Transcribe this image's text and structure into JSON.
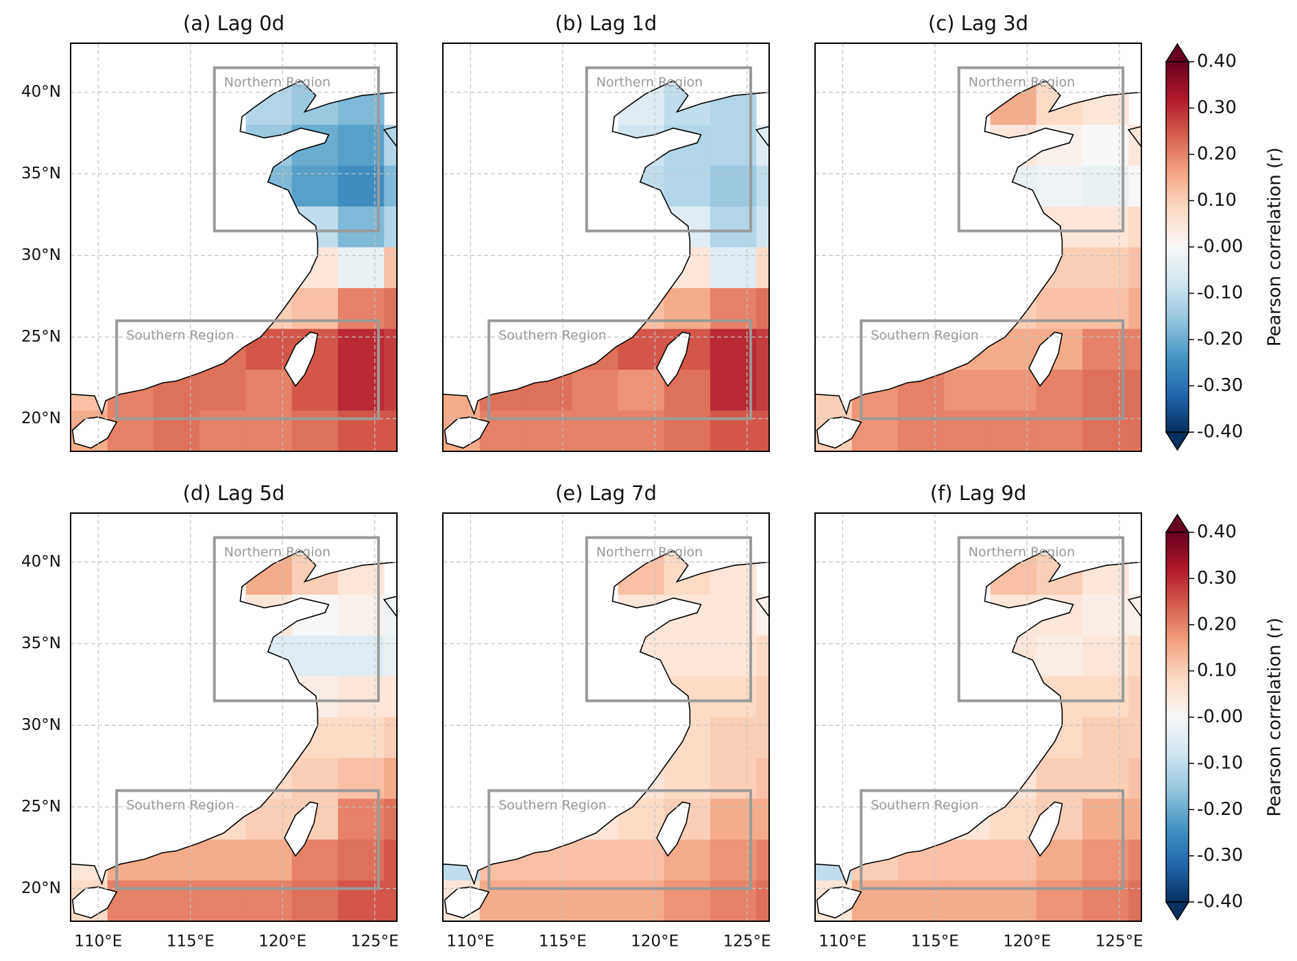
{
  "chart_data": [
    {
      "type": "heatmap",
      "title": "(a) Lag 0d",
      "xlim": [
        108.5,
        126.2
      ],
      "ylim": [
        18,
        43
      ],
      "xticks": [
        110,
        115,
        120,
        125
      ],
      "yticks": [
        {
          "value": 20,
          "label": "20°N"
        },
        {
          "value": 25,
          "label": "25°N"
        },
        {
          "value": 30,
          "label": "30°N"
        },
        {
          "value": 35,
          "label": "35°N"
        },
        {
          "value": 40,
          "label": "40°N"
        }
      ],
      "grid": true,
      "lon_edges": [
        108,
        110.5,
        113,
        115.5,
        118,
        120.5,
        123,
        125.5,
        128
      ],
      "lat_edges": [
        40.5,
        38,
        35.5,
        33,
        30.5,
        28,
        25.5,
        23,
        20.5,
        18
      ],
      "values": [
        [
          null,
          null,
          null,
          null,
          -0.12,
          -0.15,
          -0.18,
          null
        ],
        [
          null,
          null,
          null,
          null,
          -0.15,
          -0.2,
          -0.22,
          -0.12
        ],
        [
          null,
          null,
          null,
          null,
          -0.18,
          -0.22,
          -0.25,
          -0.18
        ],
        [
          null,
          null,
          null,
          null,
          null,
          -0.1,
          -0.18,
          -0.12
        ],
        [
          null,
          null,
          null,
          null,
          null,
          0.05,
          -0.03,
          0.12
        ],
        [
          null,
          null,
          null,
          null,
          0.1,
          0.12,
          0.2,
          0.22
        ],
        [
          null,
          null,
          null,
          0.22,
          0.25,
          0.25,
          0.3,
          0.28
        ],
        [
          0.12,
          0.2,
          0.22,
          0.22,
          0.2,
          0.25,
          0.3,
          0.28
        ],
        [
          0.15,
          0.2,
          0.22,
          0.2,
          0.2,
          0.22,
          0.25,
          0.25
        ]
      ],
      "regions": [
        {
          "name": "Northern Region",
          "lon": [
            116.3,
            125.2
          ],
          "lat": [
            31.5,
            41.5
          ]
        },
        {
          "name": "Southern Region",
          "lon": [
            111.0,
            125.2
          ],
          "lat": [
            20.0,
            26.0
          ]
        }
      ]
    },
    {
      "type": "heatmap",
      "title": "(b) Lag 1d",
      "xlim": [
        108.5,
        126.2
      ],
      "ylim": [
        18,
        43
      ],
      "xticks": [
        110,
        115,
        120,
        125
      ],
      "yticks": [
        20,
        25,
        30,
        35,
        40
      ],
      "grid": true,
      "lon_edges": [
        108,
        110.5,
        113,
        115.5,
        118,
        120.5,
        123,
        125.5,
        128
      ],
      "lat_edges": [
        40.5,
        38,
        35.5,
        33,
        30.5,
        28,
        25.5,
        23,
        20.5,
        18
      ],
      "values": [
        [
          null,
          null,
          null,
          null,
          -0.05,
          -0.1,
          -0.12,
          null
        ],
        [
          null,
          null,
          null,
          null,
          -0.08,
          -0.12,
          -0.12,
          -0.05
        ],
        [
          null,
          null,
          null,
          null,
          -0.1,
          -0.12,
          -0.15,
          -0.1
        ],
        [
          null,
          null,
          null,
          null,
          null,
          -0.05,
          -0.12,
          -0.08
        ],
        [
          null,
          null,
          null,
          null,
          null,
          0.05,
          -0.05,
          0.08
        ],
        [
          null,
          null,
          null,
          null,
          0.12,
          0.15,
          0.2,
          0.22
        ],
        [
          null,
          null,
          null,
          0.22,
          0.25,
          0.25,
          0.3,
          0.28
        ],
        [
          0.15,
          0.22,
          0.22,
          0.2,
          0.18,
          0.22,
          0.3,
          0.28
        ],
        [
          0.15,
          0.2,
          0.2,
          0.2,
          0.2,
          0.22,
          0.25,
          0.25
        ]
      ],
      "regions": [
        {
          "name": "Northern Region",
          "lon": [
            116.3,
            125.2
          ],
          "lat": [
            31.5,
            41.5
          ]
        },
        {
          "name": "Southern Region",
          "lon": [
            111.0,
            125.2
          ],
          "lat": [
            20.0,
            26.0
          ]
        }
      ]
    },
    {
      "type": "heatmap",
      "title": "(c) Lag 3d",
      "xlim": [
        108.5,
        126.2
      ],
      "ylim": [
        18,
        43
      ],
      "xticks": [
        110,
        115,
        120,
        125
      ],
      "yticks": [
        20,
        25,
        30,
        35,
        40
      ],
      "grid": true,
      "lon_edges": [
        108,
        110.5,
        113,
        115.5,
        118,
        120.5,
        123,
        125.5,
        128
      ],
      "lat_edges": [
        40.5,
        38,
        35.5,
        33,
        30.5,
        28,
        25.5,
        23,
        20.5,
        18
      ],
      "values": [
        [
          null,
          null,
          null,
          null,
          0.15,
          0.08,
          0.05,
          null
        ],
        [
          null,
          null,
          null,
          null,
          0.05,
          0.02,
          0.0,
          0.05
        ],
        [
          null,
          null,
          null,
          null,
          -0.03,
          -0.02,
          -0.03,
          0.0
        ],
        [
          null,
          null,
          null,
          null,
          null,
          0.05,
          0.05,
          0.08
        ],
        [
          null,
          null,
          null,
          null,
          null,
          0.1,
          0.1,
          0.12
        ],
        [
          null,
          null,
          null,
          null,
          0.1,
          0.12,
          0.12,
          0.15
        ],
        [
          null,
          null,
          null,
          0.15,
          0.15,
          0.15,
          0.2,
          0.2
        ],
        [
          0.1,
          0.18,
          0.2,
          0.18,
          0.18,
          0.2,
          0.22,
          0.22
        ],
        [
          0.1,
          0.18,
          0.2,
          0.2,
          0.2,
          0.2,
          0.22,
          0.22
        ]
      ],
      "regions": [
        {
          "name": "Northern Region",
          "lon": [
            116.3,
            125.2
          ],
          "lat": [
            31.5,
            41.5
          ]
        },
        {
          "name": "Southern Region",
          "lon": [
            111.0,
            125.2
          ],
          "lat": [
            20.0,
            26.0
          ]
        }
      ]
    },
    {
      "type": "heatmap",
      "title": "(d) Lag 5d",
      "xlim": [
        108.5,
        126.2
      ],
      "ylim": [
        18,
        43
      ],
      "xticks": [
        {
          "value": 110,
          "label": "110°E"
        },
        {
          "value": 115,
          "label": "115°E"
        },
        {
          "value": 120,
          "label": "120°E"
        },
        {
          "value": 125,
          "label": "125°E"
        }
      ],
      "yticks": [
        {
          "value": 20,
          "label": "20°N"
        },
        {
          "value": 25,
          "label": "25°N"
        },
        {
          "value": 30,
          "label": "30°N"
        },
        {
          "value": 35,
          "label": "35°N"
        },
        {
          "value": 40,
          "label": "40°N"
        }
      ],
      "grid": true,
      "lon_edges": [
        108,
        110.5,
        113,
        115.5,
        118,
        120.5,
        123,
        125.5,
        128
      ],
      "lat_edges": [
        40.5,
        38,
        35.5,
        33,
        30.5,
        28,
        25.5,
        23,
        20.5,
        18
      ],
      "values": [
        [
          null,
          null,
          null,
          null,
          0.15,
          0.1,
          0.05,
          null
        ],
        [
          null,
          null,
          null,
          null,
          0.05,
          0.0,
          0.02,
          -0.02
        ],
        [
          null,
          null,
          null,
          null,
          -0.05,
          -0.05,
          -0.05,
          -0.03
        ],
        [
          null,
          null,
          null,
          null,
          null,
          0.03,
          0.05,
          0.05
        ],
        [
          null,
          null,
          null,
          null,
          null,
          0.08,
          0.08,
          0.1
        ],
        [
          null,
          null,
          null,
          null,
          0.08,
          0.1,
          0.12,
          0.15
        ],
        [
          null,
          null,
          null,
          0.08,
          0.1,
          0.1,
          0.2,
          0.22
        ],
        [
          0.05,
          0.15,
          0.15,
          0.15,
          0.15,
          0.2,
          0.22,
          0.25
        ],
        [
          0.08,
          0.2,
          0.2,
          0.2,
          0.2,
          0.22,
          0.25,
          0.25
        ]
      ],
      "regions": [
        {
          "name": "Northern Region",
          "lon": [
            116.3,
            125.2
          ],
          "lat": [
            31.5,
            41.5
          ]
        },
        {
          "name": "Southern Region",
          "lon": [
            111.0,
            125.2
          ],
          "lat": [
            20.0,
            26.0
          ]
        }
      ]
    },
    {
      "type": "heatmap",
      "title": "(e) Lag 7d",
      "xlim": [
        108.5,
        126.2
      ],
      "ylim": [
        18,
        43
      ],
      "xticks": [
        {
          "value": 110,
          "label": "110°E"
        },
        {
          "value": 115,
          "label": "115°E"
        },
        {
          "value": 120,
          "label": "120°E"
        },
        {
          "value": 125,
          "label": "125°E"
        }
      ],
      "yticks": [
        20,
        25,
        30,
        35,
        40
      ],
      "grid": true,
      "lon_edges": [
        108,
        110.5,
        113,
        115.5,
        118,
        120.5,
        123,
        125.5,
        128
      ],
      "lat_edges": [
        40.5,
        38,
        35.5,
        33,
        30.5,
        28,
        25.5,
        23,
        20.5,
        18
      ],
      "values": [
        [
          null,
          null,
          null,
          null,
          0.12,
          0.08,
          0.05,
          null
        ],
        [
          null,
          null,
          null,
          null,
          0.05,
          0.05,
          0.05,
          0.02
        ],
        [
          null,
          null,
          null,
          null,
          0.05,
          0.05,
          0.05,
          0.08
        ],
        [
          null,
          null,
          null,
          null,
          null,
          0.08,
          0.08,
          0.1
        ],
        [
          null,
          null,
          null,
          null,
          null,
          0.08,
          0.1,
          0.1
        ],
        [
          null,
          null,
          null,
          null,
          0.05,
          0.08,
          0.1,
          0.12
        ],
        [
          null,
          null,
          null,
          0.05,
          0.08,
          0.1,
          0.15,
          0.15
        ],
        [
          -0.1,
          0.12,
          0.12,
          0.12,
          0.12,
          0.15,
          0.18,
          0.2
        ],
        [
          0.05,
          0.15,
          0.15,
          0.15,
          0.15,
          0.18,
          0.2,
          0.22
        ]
      ],
      "regions": [
        {
          "name": "Northern Region",
          "lon": [
            116.3,
            125.2
          ],
          "lat": [
            31.5,
            41.5
          ]
        },
        {
          "name": "Southern Region",
          "lon": [
            111.0,
            125.2
          ],
          "lat": [
            20.0,
            26.0
          ]
        }
      ]
    },
    {
      "type": "heatmap",
      "title": "(f) Lag 9d",
      "xlim": [
        108.5,
        126.2
      ],
      "ylim": [
        18,
        43
      ],
      "xticks": [
        {
          "value": 110,
          "label": "110°E"
        },
        {
          "value": 115,
          "label": "115°E"
        },
        {
          "value": 120,
          "label": "120°E"
        },
        {
          "value": 125,
          "label": "125°E"
        }
      ],
      "yticks": [
        20,
        25,
        30,
        35,
        40
      ],
      "grid": true,
      "lon_edges": [
        108,
        110.5,
        113,
        115.5,
        118,
        120.5,
        123,
        125.5,
        128
      ],
      "lat_edges": [
        40.5,
        38,
        35.5,
        33,
        30.5,
        28,
        25.5,
        23,
        20.5,
        18
      ],
      "values": [
        [
          null,
          null,
          null,
          null,
          0.12,
          0.1,
          0.05,
          null
        ],
        [
          null,
          null,
          null,
          null,
          0.05,
          0.05,
          0.03,
          0.02
        ],
        [
          null,
          null,
          null,
          null,
          0.05,
          0.03,
          0.05,
          0.08
        ],
        [
          null,
          null,
          null,
          null,
          null,
          0.08,
          0.08,
          0.1
        ],
        [
          null,
          null,
          null,
          null,
          null,
          0.08,
          0.1,
          0.1
        ],
        [
          null,
          null,
          null,
          null,
          0.05,
          0.1,
          0.1,
          0.12
        ],
        [
          null,
          null,
          null,
          0.05,
          0.08,
          0.1,
          0.15,
          0.15
        ],
        [
          -0.1,
          0.1,
          0.12,
          0.12,
          0.12,
          0.15,
          0.18,
          0.2
        ],
        [
          0.05,
          0.15,
          0.15,
          0.15,
          0.15,
          0.18,
          0.2,
          0.22
        ]
      ],
      "regions": [
        {
          "name": "Northern Region",
          "lon": [
            116.3,
            125.2
          ],
          "lat": [
            31.5,
            41.5
          ]
        },
        {
          "name": "Southern Region",
          "lon": [
            111.0,
            125.2
          ],
          "lat": [
            20.0,
            26.0
          ]
        }
      ]
    }
  ],
  "colorbar": {
    "label": "Pearson correlation (r)",
    "lim": [
      -0.4,
      0.4
    ],
    "colors": [
      "#053061",
      "#2166ac",
      "#4393c3",
      "#92c5de",
      "#d1e5f0",
      "#f7f7f7",
      "#fddbc7",
      "#f4a582",
      "#d6604d",
      "#b2182b",
      "#67001f"
    ],
    "ticks": [
      {
        "value": 0.4,
        "label": "0.40"
      },
      {
        "value": 0.3,
        "label": "0.30"
      },
      {
        "value": 0.2,
        "label": "0.20"
      },
      {
        "value": 0.1,
        "label": "0.10"
      },
      {
        "value": 0,
        "label": "-0.00"
      },
      {
        "value": -0.1,
        "label": "-0.10"
      },
      {
        "value": -0.2,
        "label": "-0.20"
      },
      {
        "value": -0.3,
        "label": "-0.30"
      },
      {
        "value": -0.4,
        "label": "-0.40"
      }
    ]
  }
}
